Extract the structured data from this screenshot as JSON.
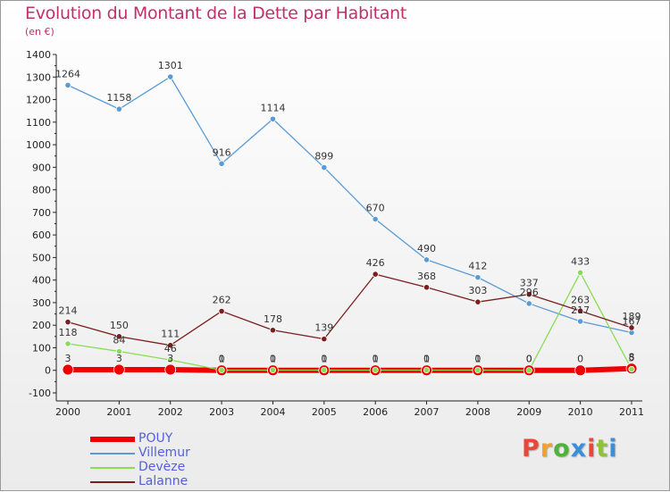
{
  "header": {
    "title": "Evolution du Montant de la Dette par Habitant",
    "unit": "(en €)"
  },
  "logo": {
    "text": "Proxiti",
    "colors": [
      "#e8473b",
      "#f2a02e",
      "#4fb33a",
      "#3a8fd8",
      "#e8473b",
      "#8fc23a",
      "#3a8fd8"
    ]
  },
  "chart_data": {
    "type": "line",
    "categories": [
      "2000",
      "2001",
      "2002",
      "2003",
      "2004",
      "2005",
      "2006",
      "2007",
      "2008",
      "2009",
      "2010",
      "2011"
    ],
    "ylim": [
      -100,
      1400
    ],
    "yticks": [
      -100,
      0,
      100,
      200,
      300,
      400,
      500,
      600,
      700,
      800,
      900,
      1000,
      1100,
      1200,
      1300,
      1400
    ],
    "grid": false,
    "legend_position": "bottom-left",
    "series": [
      {
        "name": "POUY",
        "color": "#ee0000",
        "values": [
          3,
          3,
          3,
          0,
          0,
          0,
          0,
          0,
          0,
          0,
          0,
          8
        ],
        "labels": [
          "3",
          "3",
          "3",
          "0",
          "0",
          "0",
          "0",
          "0",
          "0",
          "0",
          "0",
          "8"
        ]
      },
      {
        "name": "Villemur",
        "color": "#5b9bd5",
        "values": [
          1264,
          1158,
          1301,
          916,
          1114,
          899,
          670,
          490,
          412,
          296,
          217,
          167
        ],
        "labels": [
          "1264",
          "1158",
          "1301",
          "916",
          "1114",
          "899",
          "670",
          "490",
          "412",
          "296",
          "217",
          "167"
        ]
      },
      {
        "name": "Devèze",
        "color": "#88dd55",
        "values": [
          118,
          84,
          46,
          1,
          1,
          1,
          1,
          1,
          1,
          0,
          433,
          5
        ],
        "labels": [
          "118",
          "84",
          "46",
          "1",
          "1",
          "1",
          "1",
          "1",
          "1",
          "0",
          "433",
          "5"
        ]
      },
      {
        "name": "Lalanne",
        "color": "#7a1e1e",
        "values": [
          214,
          150,
          111,
          262,
          178,
          139,
          426,
          368,
          303,
          337,
          263,
          189
        ],
        "labels": [
          "214",
          "150",
          "111",
          "262",
          "178",
          "139",
          "426",
          "368",
          "303",
          "337",
          "263",
          "189"
        ]
      }
    ]
  }
}
